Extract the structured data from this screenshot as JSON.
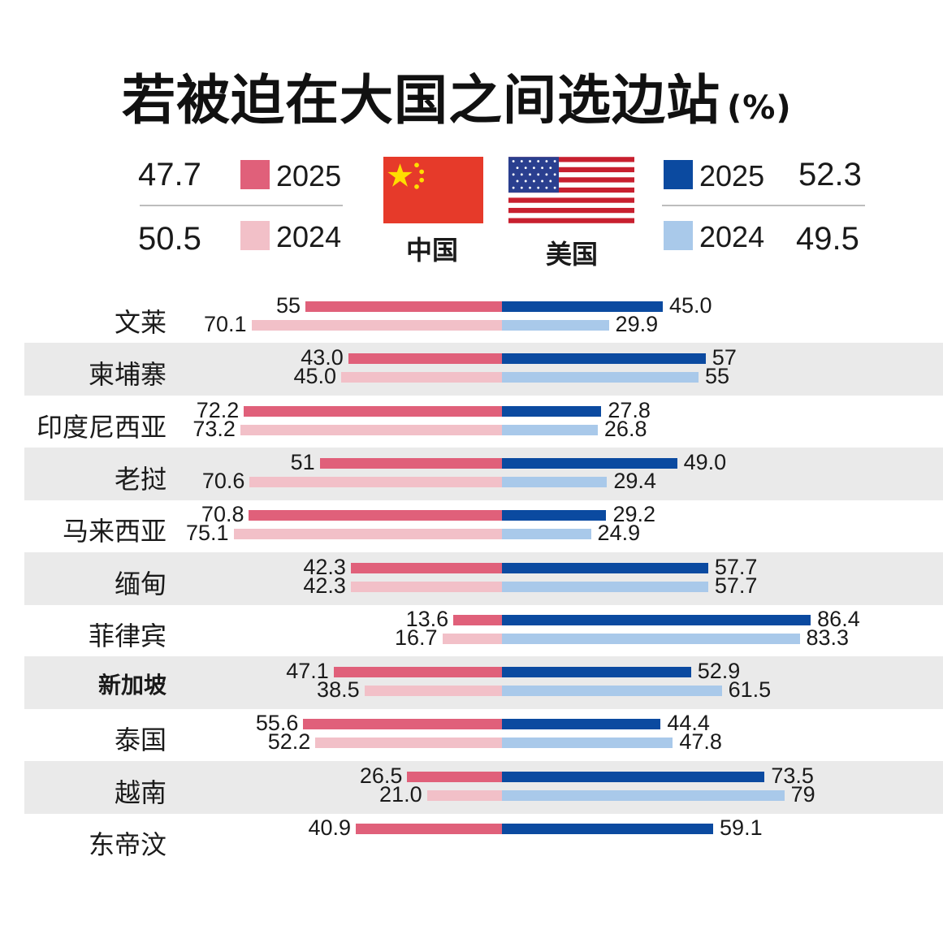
{
  "title": "若被迫在大国之间选边站",
  "title_unit": "(%)",
  "colors": {
    "china_2025": "#e0607a",
    "china_2024": "#f2c0c8",
    "us_2025": "#0b4aa0",
    "us_2024": "#a9c9ea",
    "band": "#eaeaea"
  },
  "legend": {
    "china": {
      "label": "中国",
      "value_2025": "47.7",
      "value_2024": "50.5",
      "year_2025": "2025",
      "year_2024": "2024"
    },
    "us": {
      "label": "美国",
      "value_2025": "52.3",
      "value_2024": "49.5",
      "year_2025": "2025",
      "year_2024": "2024"
    }
  },
  "chart_data": {
    "type": "bar",
    "orientation": "horizontal-diverging",
    "title": "若被迫在大国之间选边站(%)",
    "categories": [
      "文莱",
      "柬埔寨",
      "印度尼西亚",
      "老挝",
      "马来西亚",
      "缅甸",
      "菲律宾",
      "新加坡",
      "泰国",
      "越南",
      "东帝汶"
    ],
    "series": [
      {
        "name": "中国 2025",
        "side": "left",
        "values": [
          55,
          43.0,
          72.2,
          51,
          70.8,
          42.3,
          13.6,
          47.1,
          55.6,
          26.5,
          40.9
        ],
        "labels": [
          "55",
          "43.0",
          "72.2",
          "51",
          "70.8",
          "42.3",
          "13.6",
          "47.1",
          "55.6",
          "26.5",
          "40.9"
        ]
      },
      {
        "name": "中国 2024",
        "side": "left",
        "values": [
          70.1,
          45.0,
          73.2,
          70.6,
          75.1,
          42.3,
          16.7,
          38.5,
          52.2,
          21.0,
          null
        ],
        "labels": [
          "70.1",
          "45.0",
          "73.2",
          "70.6",
          "75.1",
          "42.3",
          "16.7",
          "38.5",
          "52.2",
          "21.0",
          ""
        ]
      },
      {
        "name": "美国 2025",
        "side": "right",
        "values": [
          45.0,
          57,
          27.8,
          49.0,
          29.2,
          57.7,
          86.4,
          52.9,
          44.4,
          73.5,
          59.1
        ],
        "labels": [
          "45.0",
          "57",
          "27.8",
          "49.0",
          "29.2",
          "57.7",
          "86.4",
          "52.9",
          "44.4",
          "73.5",
          "59.1"
        ]
      },
      {
        "name": "美国 2024",
        "side": "right",
        "values": [
          29.9,
          55,
          26.8,
          29.4,
          24.9,
          57.7,
          83.3,
          61.5,
          47.8,
          79,
          null
        ],
        "labels": [
          "29.9",
          "55",
          "26.8",
          "29.4",
          "24.9",
          "57.7",
          "83.3",
          "61.5",
          "47.8",
          "79",
          ""
        ]
      }
    ],
    "bold_category": "新加坡",
    "xlim": [
      0,
      100
    ]
  }
}
